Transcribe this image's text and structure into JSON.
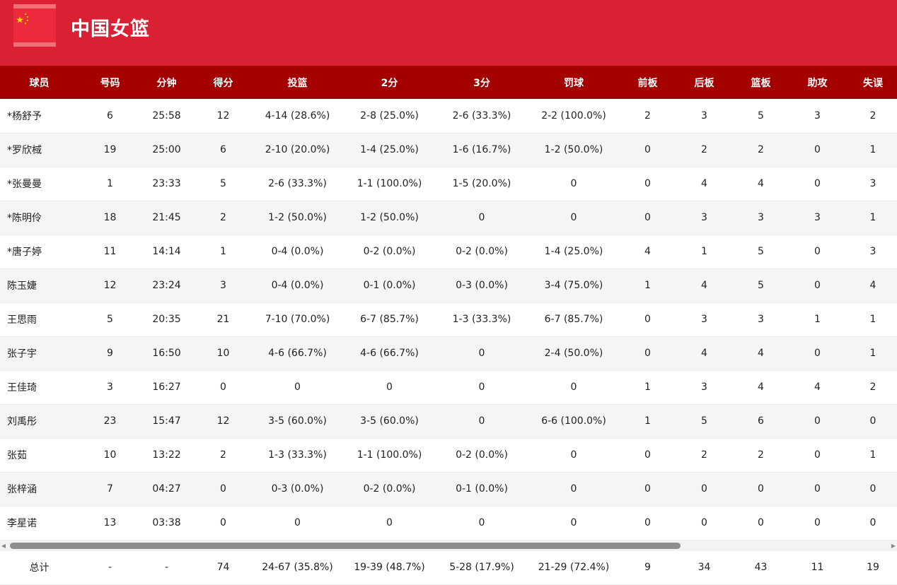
{
  "team": {
    "name": "中国女篮"
  },
  "columns": [
    "球员",
    "号码",
    "分钟",
    "得分",
    "投篮",
    "2分",
    "3分",
    "罚球",
    "前板",
    "后板",
    "篮板",
    "助攻",
    "失误"
  ],
  "players": [
    [
      "*杨舒予",
      "6",
      "25:58",
      "12",
      "4-14 (28.6%)",
      "2-8 (25.0%)",
      "2-6 (33.3%)",
      "2-2 (100.0%)",
      "2",
      "3",
      "5",
      "3",
      "2"
    ],
    [
      "*罗欣棫",
      "19",
      "25:00",
      "6",
      "2-10 (20.0%)",
      "1-4 (25.0%)",
      "1-6 (16.7%)",
      "1-2 (50.0%)",
      "0",
      "2",
      "2",
      "0",
      "1"
    ],
    [
      "*张曼曼",
      "1",
      "23:33",
      "5",
      "2-6 (33.3%)",
      "1-1 (100.0%)",
      "1-5 (20.0%)",
      "0",
      "0",
      "4",
      "4",
      "0",
      "3"
    ],
    [
      "*陈明伶",
      "18",
      "21:45",
      "2",
      "1-2 (50.0%)",
      "1-2 (50.0%)",
      "0",
      "0",
      "0",
      "3",
      "3",
      "3",
      "1"
    ],
    [
      "*唐子婷",
      "11",
      "14:14",
      "1",
      "0-4 (0.0%)",
      "0-2 (0.0%)",
      "0-2 (0.0%)",
      "1-4 (25.0%)",
      "4",
      "1",
      "5",
      "0",
      "3"
    ],
    [
      "陈玉婕",
      "12",
      "23:24",
      "3",
      "0-4 (0.0%)",
      "0-1 (0.0%)",
      "0-3 (0.0%)",
      "3-4 (75.0%)",
      "1",
      "4",
      "5",
      "0",
      "4"
    ],
    [
      "王思雨",
      "5",
      "20:35",
      "21",
      "7-10 (70.0%)",
      "6-7 (85.7%)",
      "1-3 (33.3%)",
      "6-7 (85.7%)",
      "0",
      "3",
      "3",
      "1",
      "1"
    ],
    [
      "张子宇",
      "9",
      "16:50",
      "10",
      "4-6 (66.7%)",
      "4-6 (66.7%)",
      "0",
      "2-4 (50.0%)",
      "0",
      "4",
      "4",
      "0",
      "1"
    ],
    [
      "王佳琦",
      "3",
      "16:27",
      "0",
      "0",
      "0",
      "0",
      "0",
      "1",
      "3",
      "4",
      "4",
      "2"
    ],
    [
      "刘禹彤",
      "23",
      "15:47",
      "12",
      "3-5 (60.0%)",
      "3-5 (60.0%)",
      "0",
      "6-6 (100.0%)",
      "1",
      "5",
      "6",
      "0",
      "0"
    ],
    [
      "张茹",
      "10",
      "13:22",
      "2",
      "1-3 (33.3%)",
      "1-1 (100.0%)",
      "0-2 (0.0%)",
      "0",
      "0",
      "2",
      "2",
      "0",
      "1"
    ],
    [
      "张梓涵",
      "7",
      "04:27",
      "0",
      "0-3 (0.0%)",
      "0-2 (0.0%)",
      "0-1 (0.0%)",
      "0",
      "0",
      "0",
      "0",
      "0",
      "0"
    ],
    [
      "李星诺",
      "13",
      "03:38",
      "0",
      "0",
      "0",
      "0",
      "0",
      "0",
      "0",
      "0",
      "0",
      "0"
    ]
  ],
  "totals": [
    "总计",
    "-",
    "-",
    "74",
    "24-67 (35.8%)",
    "19-39 (48.7%)",
    "5-28 (17.9%)",
    "21-29 (72.4%)",
    "9",
    "34",
    "43",
    "11",
    "19"
  ],
  "icons": {
    "flag": "china-flag-icon",
    "scroll_left": "arrow-left-icon",
    "scroll_right": "arrow-right-icon"
  },
  "colors": {
    "header_bg": "#da2133",
    "table_header_bg": "#a50000",
    "flag_red": "#ec2a3b",
    "flag_star": "#ffde00"
  }
}
